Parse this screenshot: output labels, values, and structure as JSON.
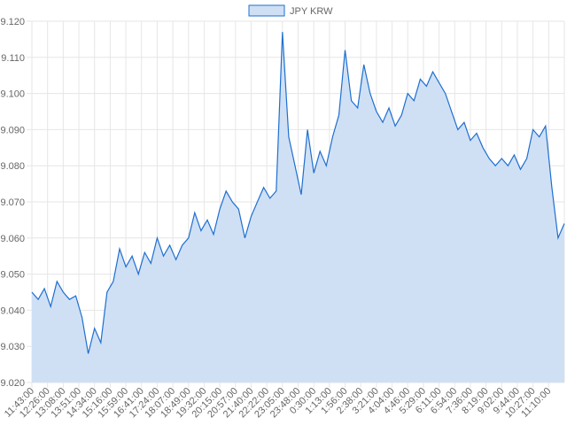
{
  "chart_data": {
    "type": "area",
    "title": "",
    "xlabel": "",
    "ylabel": "",
    "ylim": [
      9.02,
      9.12
    ],
    "y_ticks": [
      "9.020",
      "9.030",
      "9.040",
      "9.050",
      "9.060",
      "9.070",
      "9.080",
      "9.090",
      "9.100",
      "9.110",
      "9.120"
    ],
    "x_ticks": [
      "11:43:00",
      "12:26:00",
      "13:08:00",
      "13:51:00",
      "14:34:00",
      "15:16:00",
      "15:59:00",
      "16:41:00",
      "17:24:00",
      "18:07:00",
      "18:49:00",
      "19:32:00",
      "20:15:00",
      "20:57:00",
      "21:40:00",
      "22:22:00",
      "23:05:00",
      "23:48:00",
      "0:30:00",
      "1:13:00",
      "1:56:00",
      "2:38:00",
      "3:21:00",
      "4:04:00",
      "4:46:00",
      "5:29:00",
      "6:11:00",
      "6:54:00",
      "7:36:00",
      "8:19:00",
      "9:02:00",
      "9:44:00",
      "10:27:00",
      "11:10:00"
    ],
    "grid": true,
    "legend": "top-center",
    "series": [
      {
        "name": "JPY KRW",
        "color": "#1f6fcf",
        "fill": "#cfe0f5",
        "values": [
          9.045,
          9.043,
          9.046,
          9.041,
          9.048,
          9.045,
          9.043,
          9.044,
          9.038,
          9.028,
          9.035,
          9.031,
          9.045,
          9.048,
          9.057,
          9.052,
          9.055,
          9.05,
          9.056,
          9.053,
          9.06,
          9.055,
          9.058,
          9.054,
          9.058,
          9.06,
          9.067,
          9.062,
          9.065,
          9.061,
          9.068,
          9.073,
          9.07,
          9.068,
          9.06,
          9.066,
          9.07,
          9.074,
          9.071,
          9.073,
          9.117,
          9.088,
          9.08,
          9.072,
          9.09,
          9.078,
          9.084,
          9.08,
          9.088,
          9.094,
          9.112,
          9.098,
          9.096,
          9.108,
          9.1,
          9.095,
          9.092,
          9.096,
          9.091,
          9.094,
          9.1,
          9.098,
          9.104,
          9.102,
          9.106,
          9.103,
          9.1,
          9.095,
          9.09,
          9.092,
          9.087,
          9.089,
          9.085,
          9.082,
          9.08,
          9.082,
          9.08,
          9.083,
          9.079,
          9.082,
          9.09,
          9.088,
          9.091,
          9.074,
          9.06,
          9.064
        ]
      }
    ]
  }
}
